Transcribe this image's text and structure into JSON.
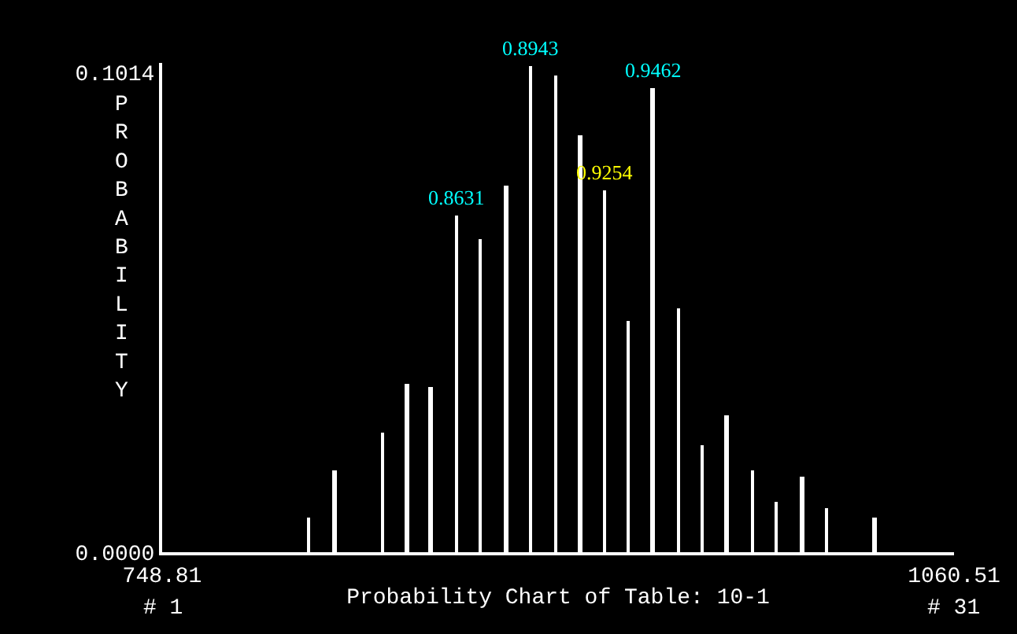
{
  "chart_data": {
    "type": "bar",
    "xlabel": "Probability Chart of Table: 10-1",
    "ylabel": "PROBABILITY",
    "x": [
      806.6,
      816.7,
      835.7,
      845.2,
      854.7,
      864.8,
      874.3,
      884.4,
      893.9,
      904.0,
      913.5,
      923.0,
      932.5,
      942.0,
      952.1,
      961.6,
      971.1,
      981.2,
      990.7,
      1000.8,
      1010.3,
      1029.3
    ],
    "values": [
      0.0073,
      0.0173,
      0.0252,
      0.0355,
      0.0349,
      0.0712,
      0.0661,
      0.0776,
      0.103,
      0.101,
      0.0883,
      0.0764,
      0.0488,
      0.0983,
      0.0515,
      0.0226,
      0.0289,
      0.0173,
      0.0106,
      0.0159,
      0.0093,
      0.0073
    ],
    "color": "#ffffff",
    "xlim": [
      748.81,
      1060.51
    ],
    "xticks": [
      748.81,
      1060.51
    ],
    "ylim": [
      0,
      0.1035
    ],
    "yticks": [
      {
        "value": 0,
        "label": "0.0000"
      },
      {
        "value": 0.1014,
        "label": "0.1014"
      }
    ],
    "annotations": [
      {
        "text": "0.8631",
        "x": 864.8,
        "y": 0.0712
      },
      {
        "text": "0.8943",
        "x": 893.9,
        "y": 0.103
      },
      {
        "text": "0.9254",
        "x": 923.0,
        "y": 0.0764
      },
      {
        "text": "0.9462",
        "x": 942.0,
        "y": 0.0983
      },
      "# 1",
      "# 31"
    ],
    "grid": false,
    "legend": false
  }
}
